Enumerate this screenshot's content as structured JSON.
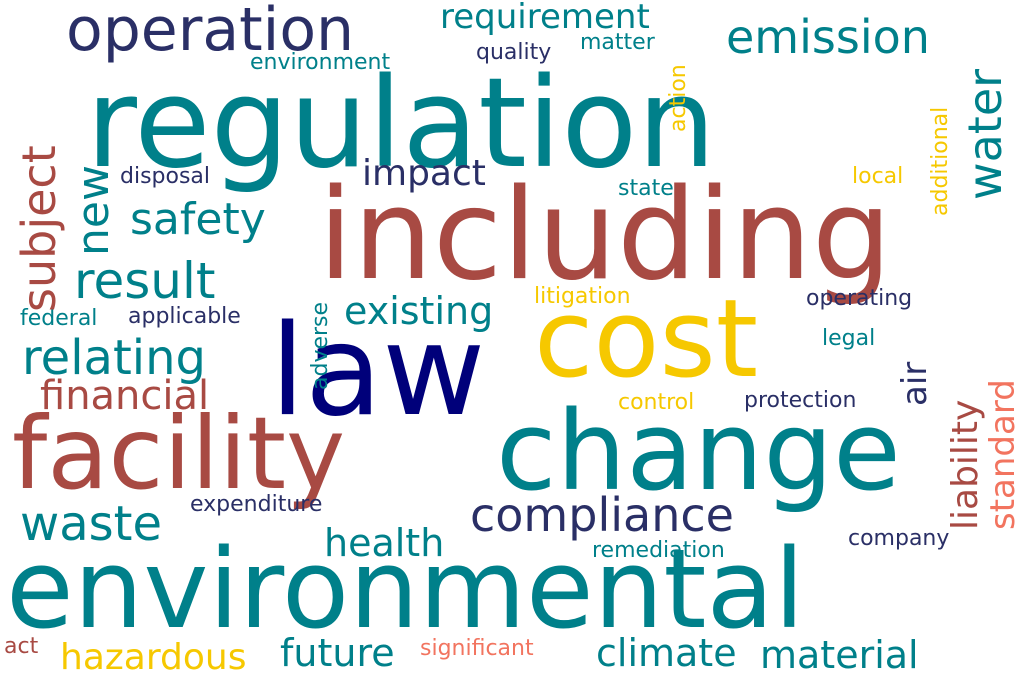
{
  "palette": {
    "teal": "#00808a",
    "navy": "#2a2f66",
    "deep_navy": "#00007a",
    "rust": "#a84a43",
    "gold": "#f6c800",
    "salmon": "#f2745f"
  },
  "words": [
    {
      "text": "regulation",
      "color": "#00808a"
    },
    {
      "text": "including",
      "color": "#a84a43"
    },
    {
      "text": "environmental",
      "color": "#00808a"
    },
    {
      "text": "change",
      "color": "#00808a"
    },
    {
      "text": "law",
      "color": "#00007a"
    },
    {
      "text": "cost",
      "color": "#f6c800"
    },
    {
      "text": "facility",
      "color": "#a84a43"
    },
    {
      "text": "operation",
      "color": "#2a2f66"
    },
    {
      "text": "compliance",
      "color": "#2a2f66"
    },
    {
      "text": "emission",
      "color": "#00808a"
    },
    {
      "text": "requirement",
      "color": "#00808a"
    },
    {
      "text": "result",
      "color": "#00808a"
    },
    {
      "text": "relating",
      "color": "#00808a"
    },
    {
      "text": "safety",
      "color": "#00808a"
    },
    {
      "text": "waste",
      "color": "#00808a"
    },
    {
      "text": "financial",
      "color": "#a84a43"
    },
    {
      "text": "existing",
      "color": "#00808a"
    },
    {
      "text": "impact",
      "color": "#2a2f66"
    },
    {
      "text": "health",
      "color": "#00808a"
    },
    {
      "text": "hazardous",
      "color": "#f6c800"
    },
    {
      "text": "future",
      "color": "#00808a"
    },
    {
      "text": "climate",
      "color": "#00808a"
    },
    {
      "text": "material",
      "color": "#00808a"
    },
    {
      "text": "expenditure",
      "color": "#2a2f66"
    },
    {
      "text": "applicable",
      "color": "#2a2f66"
    },
    {
      "text": "federal",
      "color": "#00808a"
    },
    {
      "text": "disposal",
      "color": "#2a2f66"
    },
    {
      "text": "environment",
      "color": "#00808a"
    },
    {
      "text": "quality",
      "color": "#2a2f66"
    },
    {
      "text": "matter",
      "color": "#00808a"
    },
    {
      "text": "state",
      "color": "#00808a"
    },
    {
      "text": "local",
      "color": "#f6c800"
    },
    {
      "text": "litigation",
      "color": "#f6c800"
    },
    {
      "text": "operating",
      "color": "#2a2f66"
    },
    {
      "text": "legal",
      "color": "#00808a"
    },
    {
      "text": "control",
      "color": "#f6c800"
    },
    {
      "text": "protection",
      "color": "#2a2f66"
    },
    {
      "text": "remediation",
      "color": "#00808a"
    },
    {
      "text": "company",
      "color": "#2a2f66"
    },
    {
      "text": "significant",
      "color": "#f2745f"
    },
    {
      "text": "act",
      "color": "#a84a43"
    },
    {
      "text": "subject",
      "color": "#a84a43"
    },
    {
      "text": "new",
      "color": "#00808a"
    },
    {
      "text": "water",
      "color": "#00808a"
    },
    {
      "text": "additional",
      "color": "#f6c800"
    },
    {
      "text": "action",
      "color": "#f6c800"
    },
    {
      "text": "adverse",
      "color": "#00808a"
    },
    {
      "text": "air",
      "color": "#2a2f66"
    },
    {
      "text": "liability",
      "color": "#a84a43"
    },
    {
      "text": "standard",
      "color": "#f2745f"
    }
  ]
}
